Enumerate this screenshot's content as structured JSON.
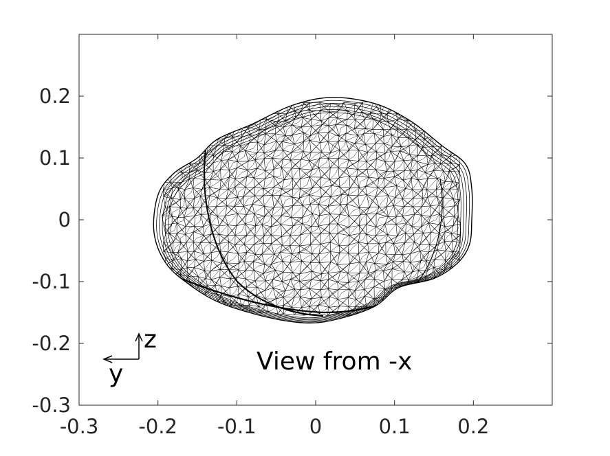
{
  "chart_data": {
    "type": "wireframe-mesh",
    "x_ticks": [
      "-0.3",
      "-0.2",
      "-0.1",
      "0",
      "0.1",
      "0.2"
    ],
    "y_ticks": [
      "0.2",
      "0.1",
      "0",
      "-0.1",
      "-0.2",
      "-0.3"
    ],
    "xlim": [
      -0.3,
      0.3
    ],
    "ylim": [
      -0.3,
      0.3
    ],
    "annotation": "View from -x",
    "orientation_axes": {
      "horizontal": "y",
      "vertical": "z"
    },
    "colors": {
      "mesh": "#000000",
      "axes": "#262626",
      "background": "#ffffff"
    }
  }
}
